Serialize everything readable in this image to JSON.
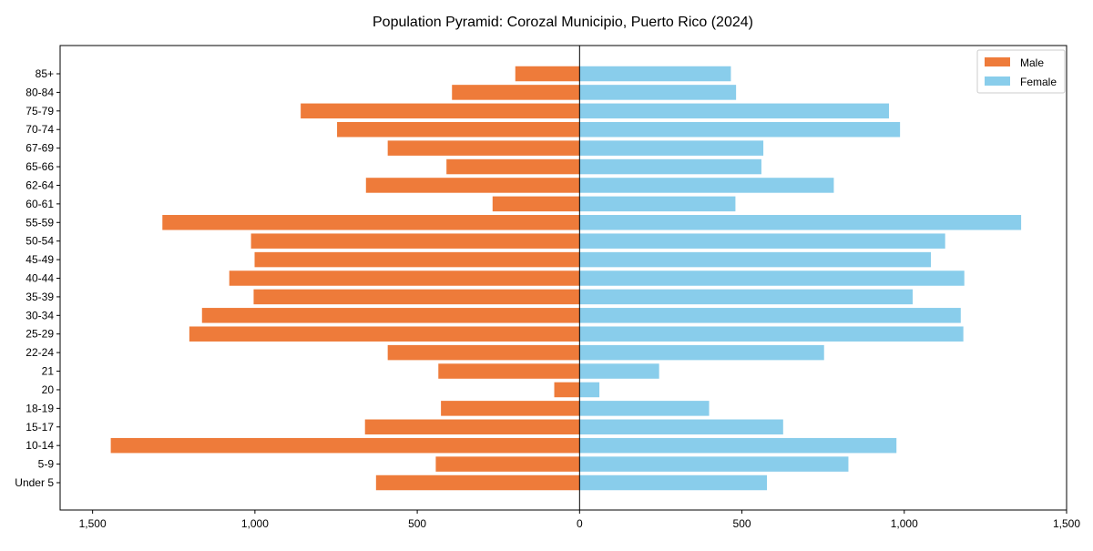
{
  "chart_data": {
    "type": "bar",
    "orientation": "horizontal-pyramid",
    "title": "Population Pyramid: Corozal Municipio, Puerto Rico (2024)",
    "xlabel": "",
    "ylabel": "",
    "xlim": [
      -1600,
      1500
    ],
    "xticks": [
      -1500,
      -1000,
      -500,
      0,
      500,
      1000,
      1500
    ],
    "xtick_labels": [
      "1,500",
      "1,000",
      "500",
      "0",
      "500",
      "1,000",
      "1,500"
    ],
    "legend_position": "top-right",
    "grid": false,
    "categories": [
      "85+",
      "80-84",
      "75-79",
      "70-74",
      "67-69",
      "65-66",
      "62-64",
      "60-61",
      "55-59",
      "50-54",
      "45-49",
      "40-44",
      "35-39",
      "30-34",
      "25-29",
      "22-24",
      "21",
      "20",
      "18-19",
      "15-17",
      "10-14",
      "5-9",
      "Under 5"
    ],
    "series": [
      {
        "name": "Male",
        "color": "#ee7b3a",
        "side": "left",
        "values": [
          198,
          393,
          859,
          747,
          591,
          410,
          658,
          268,
          1285,
          1012,
          1001,
          1079,
          1004,
          1163,
          1202,
          591,
          435,
          78,
          427,
          661,
          1444,
          443,
          627
        ]
      },
      {
        "name": "Female",
        "color": "#89cdeb",
        "side": "right",
        "values": [
          466,
          482,
          953,
          987,
          566,
          560,
          783,
          480,
          1360,
          1126,
          1082,
          1185,
          1026,
          1174,
          1182,
          753,
          245,
          61,
          399,
          627,
          976,
          828,
          577
        ]
      }
    ]
  }
}
